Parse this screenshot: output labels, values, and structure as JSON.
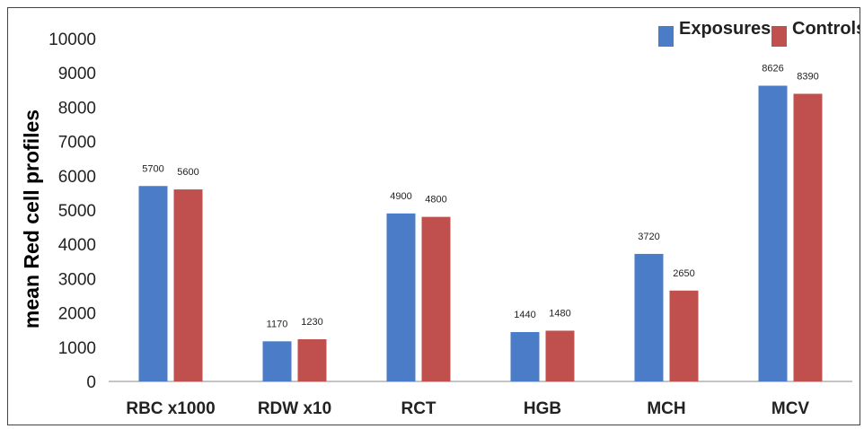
{
  "chart_data": {
    "type": "bar",
    "title": "",
    "xlabel": "",
    "ylabel": "mean Red cell profiles",
    "ylim": [
      0,
      10000
    ],
    "yticks": [
      0,
      1000,
      2000,
      3000,
      4000,
      5000,
      6000,
      7000,
      8000,
      9000,
      10000
    ],
    "grid": false,
    "legend": "top-right",
    "categories": [
      "RBC x1000",
      "RDW x10",
      "RCT",
      "HGB",
      "MCH",
      "MCV"
    ],
    "series": [
      {
        "name": "Exposures",
        "color": "#4a7cc7",
        "values": [
          5700,
          1170,
          4900,
          1440,
          3720,
          8626
        ]
      },
      {
        "name": "Controls",
        "color": "#c0504d",
        "values": [
          5600,
          1230,
          4800,
          1480,
          2650,
          8390
        ]
      }
    ]
  }
}
